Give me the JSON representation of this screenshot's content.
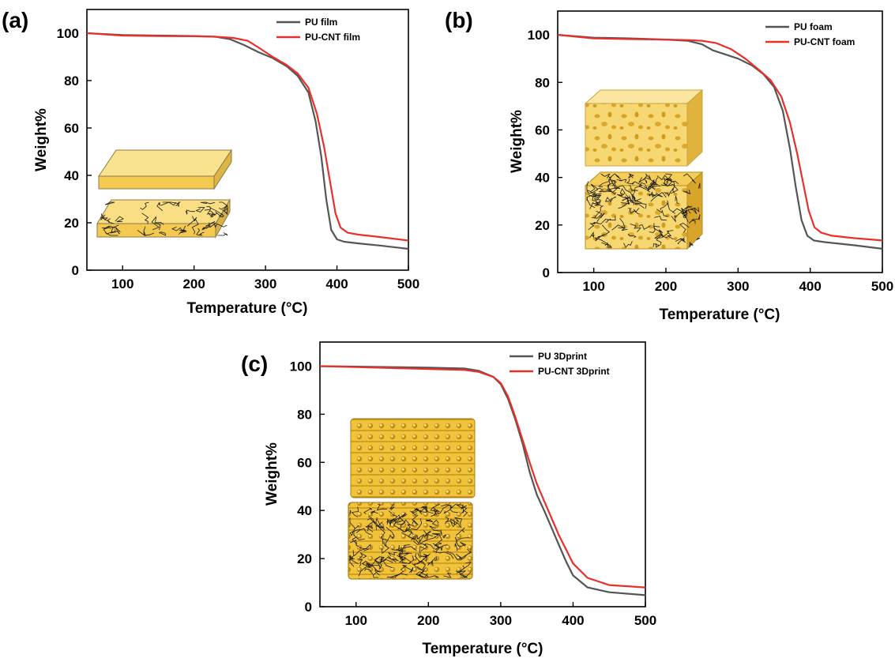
{
  "figure": {
    "colors": {
      "pu": "#555555",
      "pu_cnt": "#e8302a",
      "foam_fill": "#f5d36b",
      "foam_dark": "#d9a520",
      "cnt": "#1b1b1b"
    }
  },
  "chart_data": [
    {
      "panel": "(a)",
      "type": "line",
      "xlabel": "Temperature (°C)",
      "ylabel": "Weight%",
      "xlim": [
        50,
        500
      ],
      "ylim": [
        0,
        110
      ],
      "xticks": [
        100,
        200,
        300,
        400,
        500
      ],
      "yticks": [
        0,
        20,
        40,
        60,
        80,
        100
      ],
      "legend_position": "top-right",
      "inset_icons": [
        "film-block-icon",
        "cnt-film-block-icon"
      ],
      "series": [
        {
          "name": "PU film",
          "color": "#555555",
          "x": [
            50,
            100,
            150,
            200,
            230,
            250,
            270,
            290,
            310,
            330,
            345,
            360,
            370,
            378,
            385,
            392,
            400,
            410,
            430,
            460,
            500
          ],
          "y": [
            100,
            99.2,
            99,
            98.8,
            98.5,
            97.5,
            95,
            92,
            89.5,
            86,
            82,
            75,
            63,
            48,
            30,
            17,
            13,
            12,
            11.3,
            10.4,
            9
          ]
        },
        {
          "name": "PU-CNT film",
          "color": "#e8302a",
          "x": [
            50,
            100,
            150,
            200,
            230,
            255,
            275,
            290,
            310,
            330,
            345,
            360,
            372,
            382,
            390,
            398,
            405,
            415,
            430,
            460,
            500
          ],
          "y": [
            100,
            99,
            98.8,
            98.7,
            98.5,
            98,
            96.8,
            94,
            90,
            86.5,
            83,
            77,
            66,
            52,
            38,
            24,
            18,
            15.8,
            15,
            14,
            12.5
          ]
        }
      ]
    },
    {
      "panel": "(b)",
      "type": "line",
      "xlabel": "Temperature (°C)",
      "ylabel": "Weight%",
      "xlim": [
        50,
        500
      ],
      "ylim": [
        0,
        110
      ],
      "xticks": [
        100,
        200,
        300,
        400,
        500
      ],
      "yticks": [
        0,
        20,
        40,
        60,
        80,
        100
      ],
      "legend_position": "top-right",
      "inset_icons": [
        "foam-block-icon",
        "cnt-foam-block-icon"
      ],
      "series": [
        {
          "name": "PU foam",
          "color": "#555555",
          "x": [
            50,
            100,
            150,
            200,
            230,
            250,
            265,
            280,
            300,
            320,
            335,
            350,
            362,
            372,
            380,
            388,
            396,
            405,
            420,
            460,
            500
          ],
          "y": [
            100,
            98.8,
            98.5,
            98,
            97.5,
            96,
            93.5,
            92,
            90,
            87,
            83.5,
            78,
            68,
            52,
            36,
            22,
            15.5,
            13.5,
            12.8,
            11.5,
            10
          ]
        },
        {
          "name": "PU-CNT foam",
          "color": "#e8302a",
          "x": [
            50,
            100,
            150,
            200,
            230,
            250,
            270,
            290,
            310,
            330,
            345,
            360,
            372,
            382,
            390,
            398,
            406,
            415,
            430,
            460,
            500
          ],
          "y": [
            100,
            98.5,
            98.2,
            98,
            97.8,
            97.5,
            96.5,
            94,
            90,
            85,
            81,
            74,
            63,
            50,
            38,
            26,
            19,
            16.8,
            15.5,
            14.5,
            13.5
          ]
        }
      ]
    },
    {
      "panel": "(c)",
      "type": "line",
      "xlabel": "Temperature (°C)",
      "ylabel": "Weight%",
      "xlim": [
        50,
        500
      ],
      "ylim": [
        0,
        110
      ],
      "xticks": [
        100,
        200,
        300,
        400,
        500
      ],
      "yticks": [
        0,
        20,
        40,
        60,
        80,
        100
      ],
      "legend_position": "top-right",
      "inset_icons": [
        "lattice-block-icon",
        "cnt-lattice-block-icon"
      ],
      "series": [
        {
          "name": "PU 3Dprint",
          "color": "#555555",
          "x": [
            50,
            100,
            150,
            200,
            250,
            270,
            290,
            300,
            310,
            320,
            330,
            340,
            350,
            360,
            370,
            380,
            390,
            400,
            420,
            450,
            500
          ],
          "y": [
            100,
            99.8,
            99.6,
            99.4,
            99,
            98,
            95.5,
            92.5,
            86.5,
            78,
            68,
            56,
            46.5,
            40,
            33,
            26,
            19,
            13,
            8,
            6,
            4.8
          ]
        },
        {
          "name": "PU-CNT 3Dprint",
          "color": "#e8302a",
          "x": [
            50,
            100,
            150,
            200,
            250,
            270,
            290,
            300,
            310,
            320,
            330,
            340,
            350,
            360,
            370,
            380,
            390,
            400,
            420,
            450,
            500
          ],
          "y": [
            100,
            99.6,
            99.2,
            98.8,
            98.4,
            97.6,
            95.5,
            93,
            87.5,
            79,
            69.5,
            60,
            51,
            44,
            37,
            30,
            24,
            18,
            12,
            9,
            8
          ]
        }
      ]
    }
  ]
}
